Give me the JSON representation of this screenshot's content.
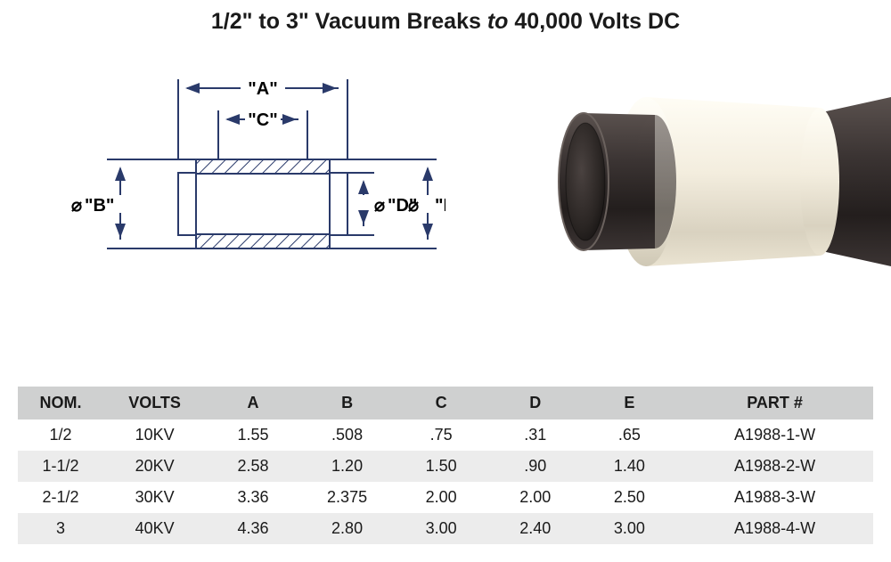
{
  "title": {
    "size_range": "1/2\" to 3\"",
    "product": "Vacuum Breaks",
    "rating": "40,000 Volts DC",
    "word_to": "to"
  },
  "schematic": {
    "labels": {
      "A": "\"A\"",
      "B": "\"B\"",
      "C": "\"C\"",
      "D": "\"D\"",
      "E": "\"E\""
    },
    "diameter_symbol": "⌀",
    "line_color": "#2a3a6a",
    "line_width": 2,
    "hatch_color": "#2a3a6a"
  },
  "photo": {
    "tube_outer_color": "#3b3433",
    "tube_inner_color": "#231e1d",
    "sleeve_color": "#f3edde",
    "sleeve_shadow": "#d9d2c0",
    "highlight": "#ffffff"
  },
  "table": {
    "header_bg": "#cfd0d0",
    "stripe_bg": "#ececec",
    "columns": [
      "NOM.",
      "VOLTS",
      "A",
      "B",
      "C",
      "D",
      "E",
      "PART #"
    ],
    "rows": [
      [
        "1/2",
        "10KV",
        "1.55",
        ".508",
        ".75",
        ".31",
        ".65",
        "A1988-1-W"
      ],
      [
        "1-1/2",
        "20KV",
        "2.58",
        "1.20",
        "1.50",
        ".90",
        "1.40",
        "A1988-2-W"
      ],
      [
        "2-1/2",
        "30KV",
        "3.36",
        "2.375",
        "2.00",
        "2.00",
        "2.50",
        "A1988-3-W"
      ],
      [
        "3",
        "40KV",
        "4.36",
        "2.80",
        "3.00",
        "2.40",
        "3.00",
        "A1988-4-W"
      ]
    ],
    "col_widths_pct": [
      10,
      12,
      11,
      11,
      11,
      11,
      11,
      23
    ]
  }
}
